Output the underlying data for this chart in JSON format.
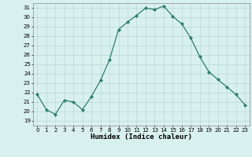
{
  "xlabel": "Humidex (Indice chaleur)",
  "x": [
    0,
    1,
    2,
    3,
    4,
    5,
    6,
    7,
    8,
    9,
    10,
    11,
    12,
    13,
    14,
    15,
    16,
    17,
    18,
    19,
    20,
    21,
    22,
    23
  ],
  "y": [
    21.8,
    20.2,
    19.7,
    21.2,
    21.0,
    20.2,
    21.6,
    23.3,
    25.5,
    28.7,
    29.5,
    30.2,
    31.0,
    30.8,
    31.2,
    30.1,
    29.3,
    27.8,
    25.8,
    24.2,
    23.4,
    22.6,
    21.8,
    20.7
  ],
  "line_color": "#2d7d6e",
  "marker": "D",
  "markersize": 2.0,
  "linewidth": 0.9,
  "bg_color": "#d8f0ee",
  "grid_color": "#b8d8d4",
  "xlim": [
    -0.5,
    23.5
  ],
  "ylim": [
    18.5,
    31.5
  ],
  "yticks": [
    19,
    20,
    21,
    22,
    23,
    24,
    25,
    26,
    27,
    28,
    29,
    30,
    31
  ],
  "xticks": [
    0,
    1,
    2,
    3,
    4,
    5,
    6,
    7,
    8,
    9,
    10,
    11,
    12,
    13,
    14,
    15,
    16,
    17,
    18,
    19,
    20,
    21,
    22,
    23
  ],
  "tick_fontsize": 5.0,
  "xlabel_fontsize": 6.5,
  "xlabel_fontweight": "bold"
}
